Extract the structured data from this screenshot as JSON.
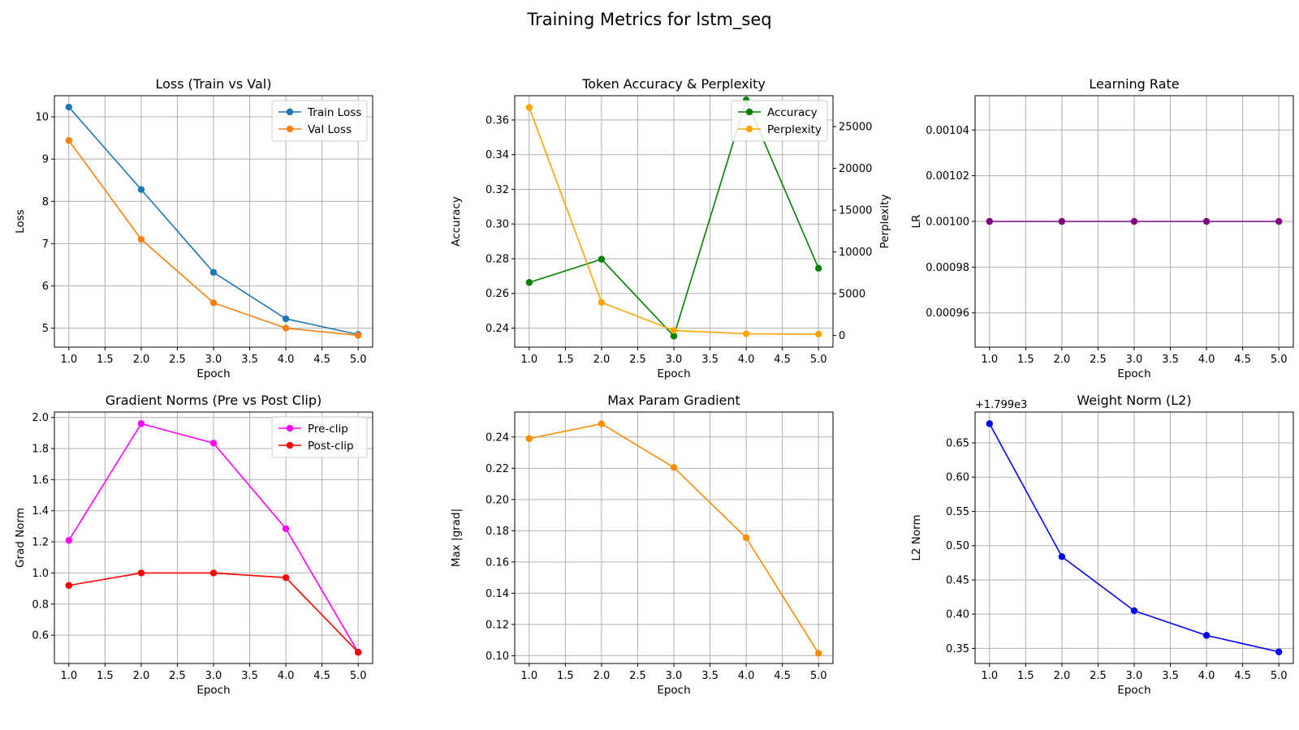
{
  "figure_title": "Training Metrics for lstm_seq",
  "chart_data": [
    {
      "type": "line",
      "title": "Loss (Train vs Val)",
      "xlabel": "Epoch",
      "ylabel": "Loss",
      "x": [
        1,
        2,
        3,
        4,
        5
      ],
      "xlim": [
        0.8,
        5.2
      ],
      "ylim": [
        4.55,
        10.5
      ],
      "xticks": [
        "1.0",
        "1.5",
        "2.0",
        "2.5",
        "3.0",
        "3.5",
        "4.0",
        "4.5",
        "5.0"
      ],
      "yticks": [
        "5",
        "6",
        "7",
        "8",
        "9",
        "10"
      ],
      "grid": true,
      "legend": "top-right",
      "series": [
        {
          "name": "Train Loss",
          "color": "#1f77b4",
          "values": [
            10.23,
            8.28,
            6.32,
            5.22,
            4.85
          ]
        },
        {
          "name": "Val Loss",
          "color": "#ff7f0e",
          "values": [
            9.44,
            7.1,
            5.6,
            5.0,
            4.83
          ]
        }
      ]
    },
    {
      "type": "line",
      "title": "Token Accuracy & Perplexity",
      "xlabel": "Epoch",
      "ylabel": "Accuracy",
      "ylabel_right": "Perplexity",
      "ylabel_color": "#008000",
      "ylabel_right_color": "#ffa500",
      "x": [
        1,
        2,
        3,
        4,
        5
      ],
      "xlim": [
        0.8,
        5.2
      ],
      "ylim": [
        0.229,
        0.374
      ],
      "ylim_right": [
        -1400,
        28700
      ],
      "xticks": [
        "1.0",
        "1.5",
        "2.0",
        "2.5",
        "3.0",
        "3.5",
        "4.0",
        "4.5",
        "5.0"
      ],
      "yticks": [
        "0.24",
        "0.26",
        "0.28",
        "0.30",
        "0.32",
        "0.34",
        "0.36"
      ],
      "yticks_right": [
        "0",
        "5000",
        "10000",
        "15000",
        "20000",
        "25000"
      ],
      "grid": true,
      "legend": "top-right",
      "series": [
        {
          "name": "Accuracy",
          "color": "#008000",
          "axis": "left",
          "values": [
            0.2663,
            0.2797,
            0.2354,
            0.3715,
            0.2745
          ]
        },
        {
          "name": "Perplexity",
          "color": "#ffa500",
          "axis": "right",
          "values": [
            27300,
            3950,
            600,
            200,
            150
          ]
        }
      ]
    },
    {
      "type": "line",
      "title": "Learning Rate",
      "xlabel": "Epoch",
      "ylabel": "LR",
      "x": [
        1,
        2,
        3,
        4,
        5
      ],
      "xlim": [
        0.8,
        5.2
      ],
      "ylim": [
        0.000945,
        0.001055
      ],
      "xticks": [
        "1.0",
        "1.5",
        "2.0",
        "2.5",
        "3.0",
        "3.5",
        "4.0",
        "4.5",
        "5.0"
      ],
      "yticks": [
        "0.00096",
        "0.00098",
        "0.00100",
        "0.00102",
        "0.00104"
      ],
      "grid": true,
      "series": [
        {
          "color": "#800080",
          "values": [
            0.001,
            0.001,
            0.001,
            0.001,
            0.001
          ]
        }
      ]
    },
    {
      "type": "line",
      "title": "Gradient Norms (Pre vs Post Clip)",
      "xlabel": "Epoch",
      "ylabel": "Grad Norm",
      "x": [
        1,
        2,
        3,
        4,
        5
      ],
      "xlim": [
        0.8,
        5.2
      ],
      "ylim": [
        0.418,
        2.035
      ],
      "xticks": [
        "1.0",
        "1.5",
        "2.0",
        "2.5",
        "3.0",
        "3.5",
        "4.0",
        "4.5",
        "5.0"
      ],
      "yticks": [
        "0.6",
        "0.8",
        "1.0",
        "1.2",
        "1.4",
        "1.6",
        "1.8",
        "2.0"
      ],
      "grid": true,
      "legend": "top-right",
      "series": [
        {
          "name": "Pre-clip",
          "color": "#ff00ff",
          "values": [
            1.21,
            1.96,
            1.835,
            1.285,
            0.49
          ]
        },
        {
          "name": "Post-clip",
          "color": "#ff0000",
          "values": [
            0.92,
            1.0,
            1.0,
            0.97,
            0.49
          ]
        }
      ]
    },
    {
      "type": "line",
      "title": "Max Param Gradient",
      "xlabel": "Epoch",
      "ylabel": "Max |grad|",
      "x": [
        1,
        2,
        3,
        4,
        5
      ],
      "xlim": [
        0.8,
        5.2
      ],
      "ylim": [
        0.095,
        0.256
      ],
      "xticks": [
        "1.0",
        "1.5",
        "2.0",
        "2.5",
        "3.0",
        "3.5",
        "4.0",
        "4.5",
        "5.0"
      ],
      "yticks": [
        "0.10",
        "0.12",
        "0.14",
        "0.16",
        "0.18",
        "0.20",
        "0.22",
        "0.24"
      ],
      "grid": true,
      "series": [
        {
          "color": "#ff8c00",
          "values": [
            0.239,
            0.2485,
            0.2205,
            0.1755,
            0.1015
          ]
        }
      ]
    },
    {
      "type": "line",
      "title": "Weight Norm (L2)",
      "xlabel": "Epoch",
      "ylabel": "L2 Norm",
      "offset_text": "+1.799e3",
      "x": [
        1,
        2,
        3,
        4,
        5
      ],
      "xlim": [
        0.8,
        5.2
      ],
      "ylim": [
        0.328,
        0.695
      ],
      "xticks": [
        "1.0",
        "1.5",
        "2.0",
        "2.5",
        "3.0",
        "3.5",
        "4.0",
        "4.5",
        "5.0"
      ],
      "yticks": [
        "0.35",
        "0.40",
        "0.45",
        "0.50",
        "0.55",
        "0.60",
        "0.65"
      ],
      "grid": true,
      "series": [
        {
          "color": "#0000ff",
          "values": [
            0.678,
            0.484,
            0.405,
            0.369,
            0.345
          ]
        }
      ]
    }
  ]
}
